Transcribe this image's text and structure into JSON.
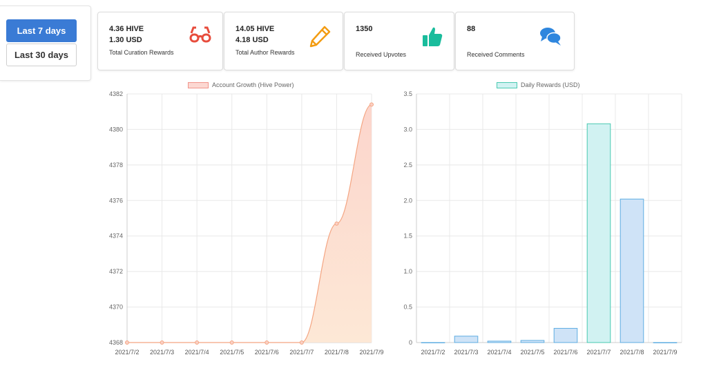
{
  "range": {
    "last7": "Last 7 days",
    "last30": "Last 30 days"
  },
  "cards": [
    {
      "line1": "4.36 HIVE",
      "line2": "1.30 USD",
      "caption": "Total Curation Rewards",
      "icon": "glasses-icon",
      "color": "#e74c3c"
    },
    {
      "line1": "14.05 HIVE",
      "line2": "4.18 USD",
      "caption": "Total Author Rewards",
      "icon": "pencil-icon",
      "color": "#f39c12"
    },
    {
      "line1": "1350",
      "line2": "",
      "caption": "Received Upvotes",
      "icon": "thumbs-up-icon",
      "color": "#1abc9c"
    },
    {
      "line1": "88",
      "line2": "",
      "caption": "Received Comments",
      "icon": "comments-icon",
      "color": "#2e86de"
    }
  ],
  "chart_data": [
    {
      "type": "area",
      "legend": "Account Growth (Hive Power)",
      "categories": [
        "2021/7/2",
        "2021/7/3",
        "2021/7/4",
        "2021/7/5",
        "2021/7/6",
        "2021/7/7",
        "2021/7/8",
        "2021/7/9"
      ],
      "values": [
        4368,
        4368,
        4368,
        4368,
        4368,
        4368,
        4374.7,
        4381.4
      ],
      "ylim": [
        4368,
        4382
      ],
      "yticks": [
        "4368",
        "4370",
        "4372",
        "4374",
        "4376",
        "4378",
        "4380",
        "4382"
      ],
      "grid": true,
      "legend_position": "top",
      "colors": {
        "line": "#f4a582",
        "point": "#f4a582"
      }
    },
    {
      "type": "bar",
      "legend": "Daily Rewards (USD)",
      "categories": [
        "2021/7/2",
        "2021/7/3",
        "2021/7/4",
        "2021/7/5",
        "2021/7/6",
        "2021/7/7",
        "2021/7/8",
        "2021/7/9"
      ],
      "values": [
        0,
        0.09,
        0.02,
        0.03,
        0.2,
        3.08,
        2.02,
        0
      ],
      "ylim": [
        0,
        3.5
      ],
      "yticks": [
        "0",
        "0.5",
        "1.0",
        "1.5",
        "2.0",
        "2.5",
        "3.0",
        "3.5"
      ],
      "grid": true,
      "legend_position": "top",
      "colors": {
        "bar_fill": "#cfe3f7",
        "bar_stroke": "#5dade2",
        "highlight_fill": "#d1f2f2",
        "highlight_stroke": "#48c9b0"
      }
    }
  ]
}
